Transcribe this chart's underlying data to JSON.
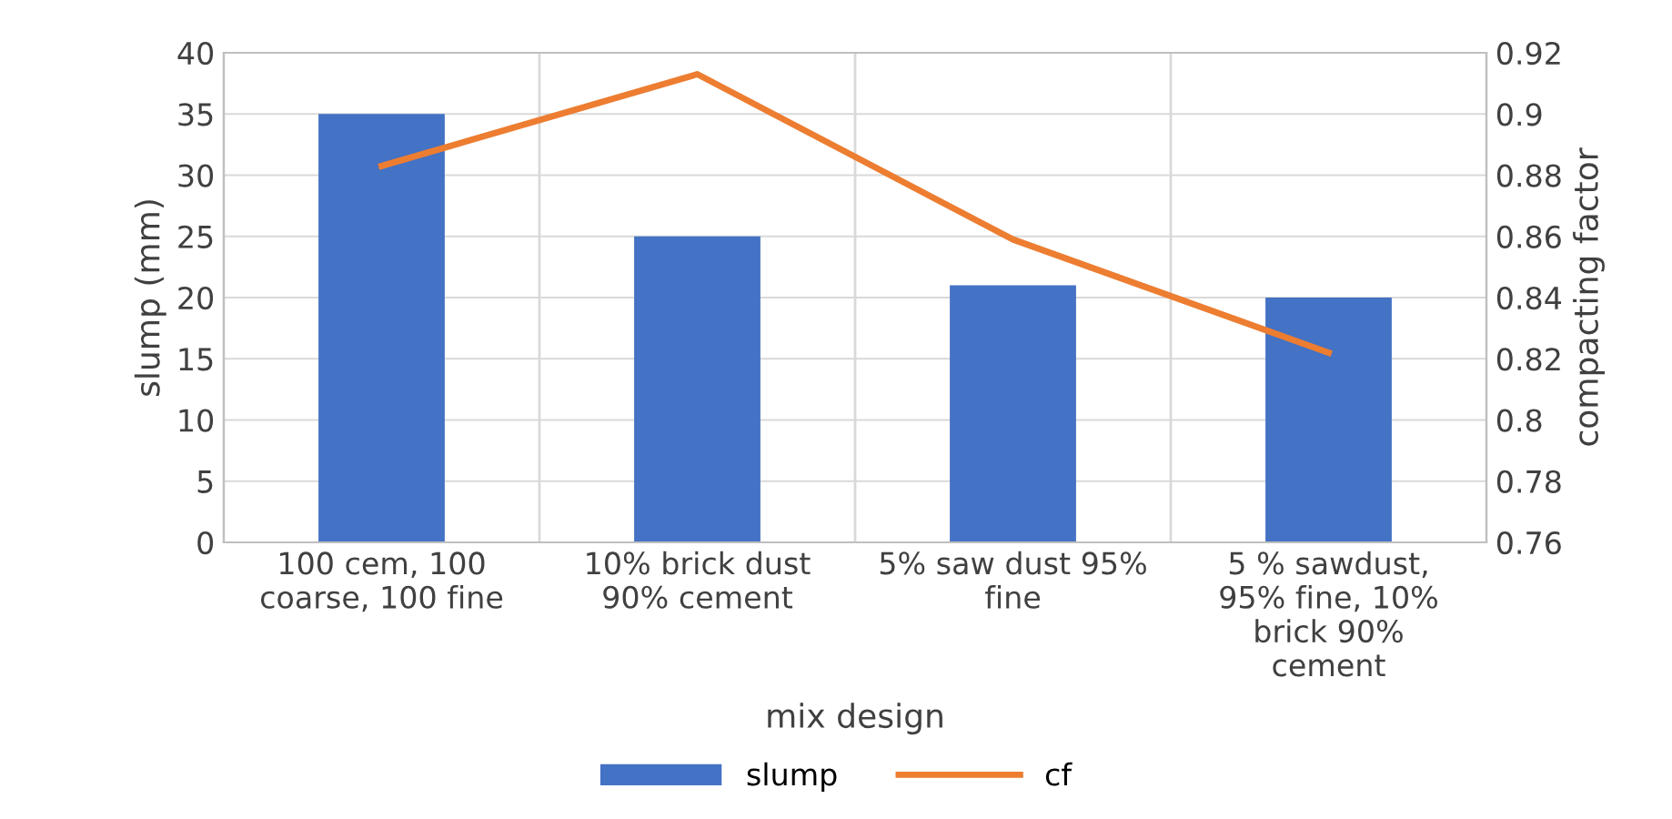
{
  "chart_data": {
    "type": "bar",
    "xlabel": "mix design",
    "ylabel": "slump (mm)",
    "y2label": "compacting factor",
    "categories": [
      "100 cem, 100\ncoarse, 100 fine",
      "10% brick dust\n90% cement",
      "5% saw dust 95%\nfine",
      "5 % sawdust,\n95% fine, 10%\nbrick 90%\ncement"
    ],
    "series": [
      {
        "name": "slump",
        "color": "#4472c4",
        "values": [
          35,
          25,
          21,
          20
        ]
      },
      {
        "name": "cf",
        "type": "line",
        "axis": "y2",
        "color": "#ed7d31",
        "values": [
          0.883,
          0.913,
          0.859,
          0.822
        ]
      }
    ],
    "ylim": [
      0,
      40
    ],
    "yticks": [
      0,
      5,
      10,
      15,
      20,
      25,
      30,
      35,
      40
    ],
    "y2lim": [
      0.76,
      0.92
    ],
    "y2ticks": [
      0.76,
      0.78,
      0.8,
      0.82,
      0.84,
      0.86,
      0.88,
      0.9,
      0.92
    ],
    "grid": true,
    "legend": "bottom",
    "marker": "none",
    "line_style": "solid"
  }
}
